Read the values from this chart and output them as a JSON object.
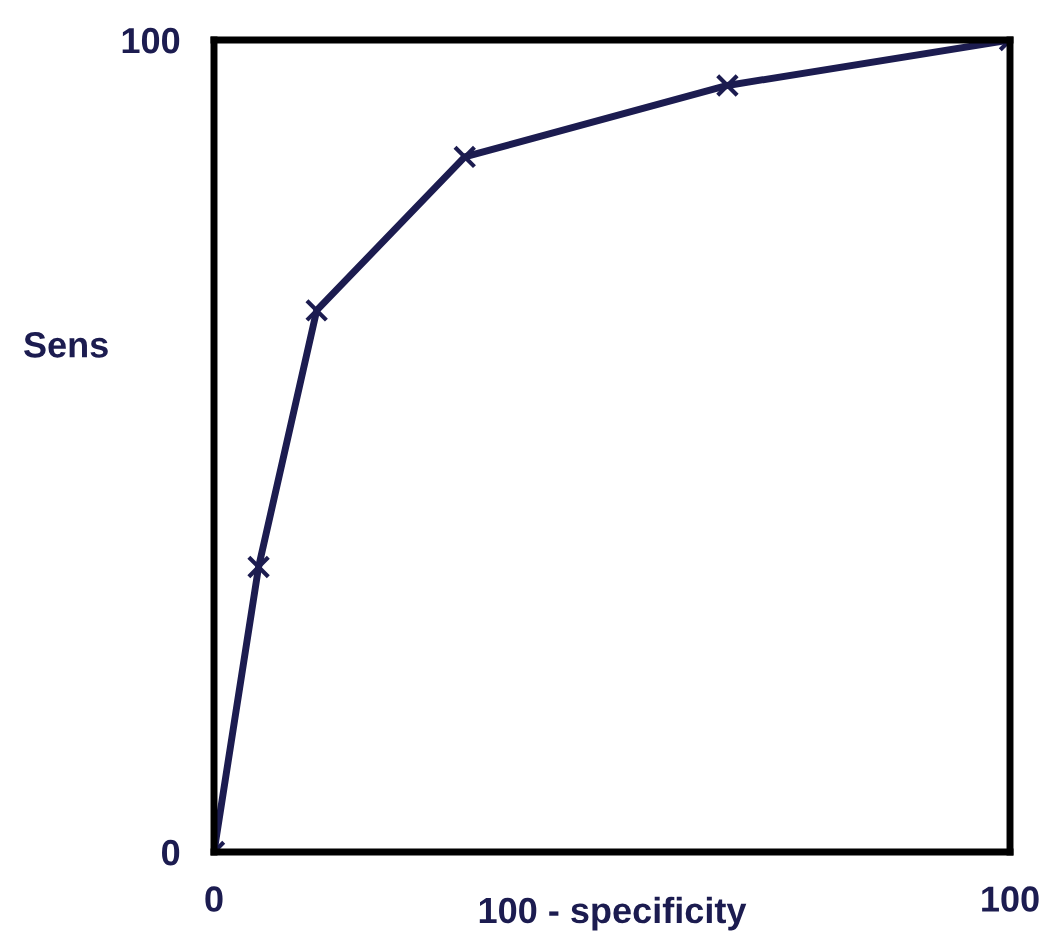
{
  "chart_data": {
    "type": "line",
    "xlabel": "100 - specificity",
    "ylabel": "Sens",
    "x": [
      0,
      5.6,
      12.9,
      31.5,
      64.5,
      100
    ],
    "series": [
      {
        "color": "#1c1c50",
        "values": [
          0,
          35.1,
          66.7,
          85.6,
          94.4,
          100
        ]
      }
    ],
    "xlim": [
      0,
      100
    ],
    "ylim": [
      0,
      100
    ],
    "xticks": [
      0,
      100
    ],
    "yticks": [
      0,
      100
    ],
    "marker": "cross",
    "line_style": "solid",
    "legend": false
  }
}
